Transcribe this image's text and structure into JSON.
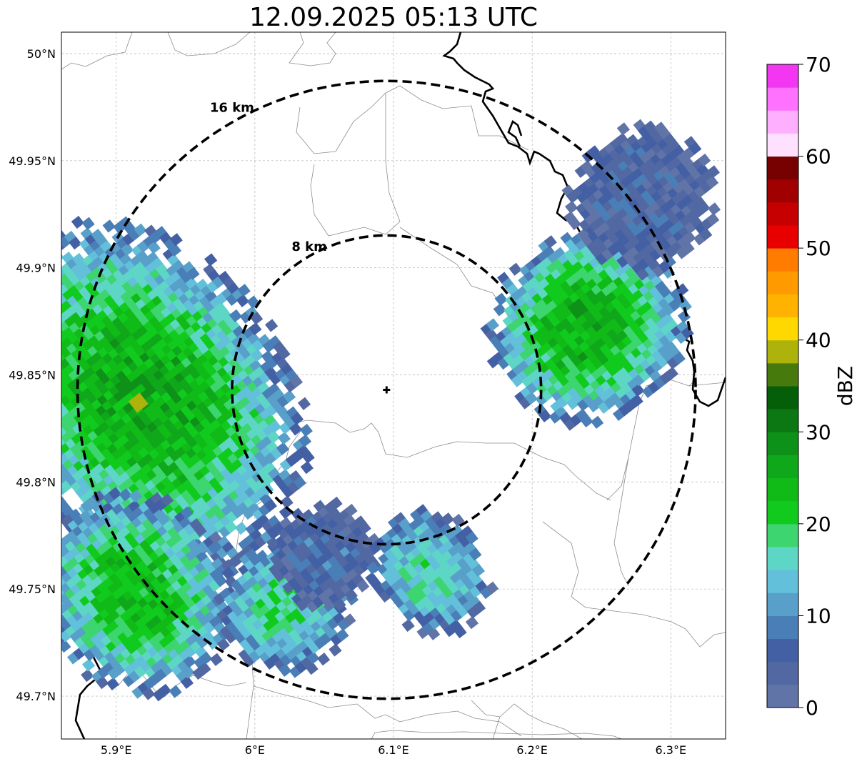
{
  "title": "12.09.2025 05:13 UTC",
  "map": {
    "lon_range": [
      5.8605,
      6.3395
    ],
    "lat_range": [
      49.68,
      50.01
    ],
    "lon_ticks": [
      {
        "value": 5.9,
        "label": "5.9°E"
      },
      {
        "value": 6.0,
        "label": "6°E"
      },
      {
        "value": 6.1,
        "label": "6.1°E"
      },
      {
        "value": 6.2,
        "label": "6.2°E"
      },
      {
        "value": 6.3,
        "label": "6.3°E"
      }
    ],
    "lat_ticks": [
      {
        "value": 50.0,
        "label": "50°N"
      },
      {
        "value": 49.95,
        "label": "49.95°N"
      },
      {
        "value": 49.9,
        "label": "49.9°N"
      },
      {
        "value": 49.85,
        "label": "49.85°N"
      },
      {
        "value": 49.8,
        "label": "49.8°N"
      },
      {
        "value": 49.75,
        "label": "49.75°N"
      },
      {
        "value": 49.7,
        "label": "49.7°N"
      }
    ],
    "grid": true,
    "center": {
      "lon": 6.095,
      "lat": 49.843
    },
    "rings": [
      {
        "radius_km": 8,
        "label": "8 km"
      },
      {
        "radius_km": 16,
        "label": "16 km"
      }
    ]
  },
  "colorbar": {
    "label": "dBZ",
    "min": 0,
    "max": 70,
    "ticks": [
      {
        "value": 0,
        "label": "0"
      },
      {
        "value": 10,
        "label": "10"
      },
      {
        "value": 20,
        "label": "20"
      },
      {
        "value": 30,
        "label": "30"
      },
      {
        "value": 40,
        "label": "40"
      },
      {
        "value": 50,
        "label": "50"
      },
      {
        "value": 60,
        "label": "60"
      },
      {
        "value": 70,
        "label": "70"
      }
    ],
    "colors": [
      "#6174a8",
      "#5168a2",
      "#4460a5",
      "#4a7eb6",
      "#58a0c9",
      "#62c0db",
      "#5ed6c6",
      "#3dd56f",
      "#10cb1e",
      "#10bb18",
      "#0fa81a",
      "#0e9118",
      "#0b7813",
      "#055f09",
      "#477a0c",
      "#adb30a",
      "#ffd800",
      "#ffb300",
      "#ff9a00",
      "#ff7c00",
      "#e80000",
      "#c60000",
      "#a10000",
      "#770000",
      "#ffe0ff",
      "#ffafff",
      "#ff71ff",
      "#f236f2"
    ]
  },
  "echo_cells": [
    {
      "lon": 5.92,
      "lat": 49.84,
      "ext_lon": 0.105,
      "ext_lat": 0.09,
      "core_dbz": 26,
      "peak": {
        "lon": 5.916,
        "lat": 49.837,
        "dbz": 39
      }
    },
    {
      "lon": 5.915,
      "lat": 49.748,
      "ext_lon": 0.07,
      "ext_lat": 0.05,
      "core_dbz": 24
    },
    {
      "lon": 6.022,
      "lat": 49.742,
      "ext_lon": 0.05,
      "ext_lat": 0.032,
      "core_dbz": 19
    },
    {
      "lon": 6.05,
      "lat": 49.766,
      "ext_lon": 0.04,
      "ext_lat": 0.026,
      "core_dbz": 8
    },
    {
      "lon": 6.127,
      "lat": 49.758,
      "ext_lon": 0.042,
      "ext_lat": 0.032,
      "core_dbz": 18
    },
    {
      "lon": 6.24,
      "lat": 49.873,
      "ext_lon": 0.075,
      "ext_lat": 0.045,
      "core_dbz": 26
    },
    {
      "lon": 6.28,
      "lat": 49.932,
      "ext_lon": 0.055,
      "ext_lat": 0.035,
      "core_dbz": 6
    }
  ]
}
